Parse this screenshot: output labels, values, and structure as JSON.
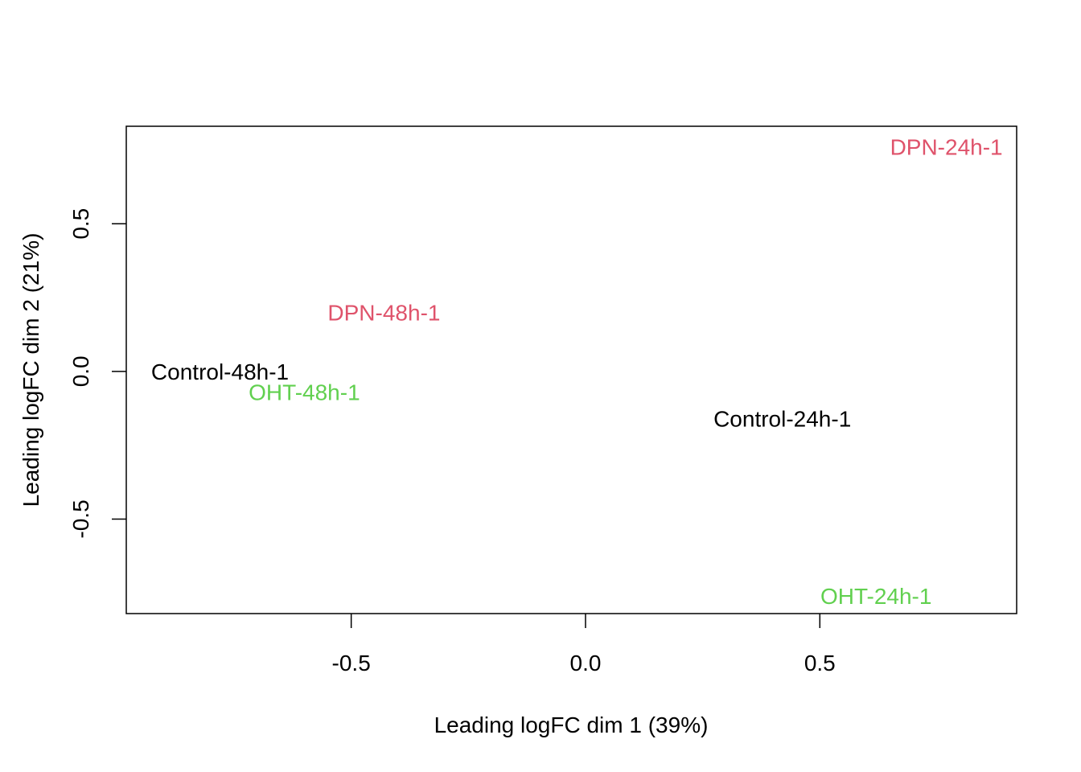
{
  "chart_data": {
    "type": "scatter",
    "title": "",
    "xlabel": "Leading logFC dim 1 (39%)",
    "ylabel": "Leading logFC dim 2 (21%)",
    "xlim": [
      -0.98,
      0.92
    ],
    "ylim": [
      -0.82,
      0.83
    ],
    "xticks": [
      -0.5,
      0.0,
      0.5
    ],
    "xtick_labels": [
      "-0.5",
      "0.0",
      "0.5"
    ],
    "yticks": [
      -0.5,
      0.0,
      0.5
    ],
    "ytick_labels": [
      "-0.5",
      "0.0",
      "0.5"
    ],
    "grid": false,
    "legend": "none",
    "marker": "text-label",
    "points": [
      {
        "label": "DPN-24h-1",
        "x": 0.77,
        "y": 0.76,
        "color": "#DF536B"
      },
      {
        "label": "DPN-48h-1",
        "x": -0.43,
        "y": 0.2,
        "color": "#DF536B"
      },
      {
        "label": "Control-48h-1",
        "x": -0.78,
        "y": 0.0,
        "color": "#000000"
      },
      {
        "label": "OHT-48h-1",
        "x": -0.6,
        "y": -0.07,
        "color": "#61D04F"
      },
      {
        "label": "Control-24h-1",
        "x": 0.42,
        "y": -0.16,
        "color": "#000000"
      },
      {
        "label": "OHT-24h-1",
        "x": 0.62,
        "y": -0.76,
        "color": "#61D04F"
      }
    ]
  }
}
